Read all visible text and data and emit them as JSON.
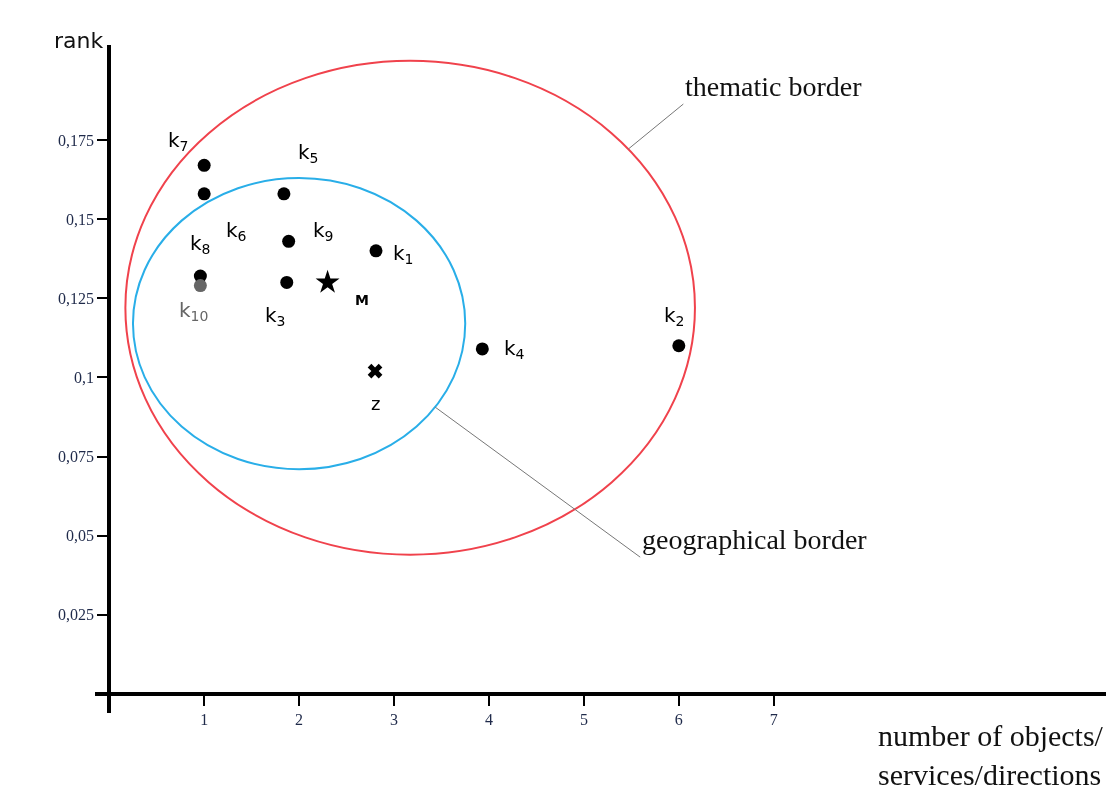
{
  "chart_data": {
    "type": "scatter",
    "xlabel": "number of objects/\nservices/directions",
    "ylabel": "rank",
    "xlim": [
      -0.15,
      10.5
    ],
    "ylim": [
      -0.006,
      0.205
    ],
    "xticks": [
      1,
      2,
      3,
      4,
      5,
      6,
      7
    ],
    "yticks": [
      {
        "value": 0.025,
        "label": "0,025"
      },
      {
        "value": 0.05,
        "label": "0,05"
      },
      {
        "value": 0.075,
        "label": "0,075"
      },
      {
        "value": 0.1,
        "label": "0,1"
      },
      {
        "value": 0.125,
        "label": "0,125"
      },
      {
        "value": 0.15,
        "label": "0,15"
      },
      {
        "value": 0.175,
        "label": "0,175"
      }
    ],
    "legend": false,
    "series": [
      {
        "name": "k$_{7}$",
        "color": "#000000",
        "marker": "circle",
        "x": [
          1.0
        ],
        "values": [
          0.167
        ]
      },
      {
        "name": "k$_{6}$",
        "color": "#000000",
        "marker": "circle",
        "x": [
          1.0
        ],
        "values": [
          0.158
        ]
      },
      {
        "name": "k$_{5}$",
        "color": "#000000",
        "marker": "circle",
        "x": [
          1.84
        ],
        "values": [
          0.158
        ]
      },
      {
        "name": "k$_{9}$",
        "color": "#000000",
        "marker": "circle",
        "x": [
          1.89
        ],
        "values": [
          0.143
        ]
      },
      {
        "name": "k$_{1}$",
        "color": "#000000",
        "marker": "circle",
        "x": [
          2.81
        ],
        "values": [
          0.14
        ]
      },
      {
        "name": "k$_{8}$",
        "color": "#000000",
        "marker": "circle",
        "x": [
          0.96
        ],
        "values": [
          0.132
        ]
      },
      {
        "name": "k$_{10}$",
        "color": "#666666",
        "marker": "circle",
        "x": [
          0.96
        ],
        "values": [
          0.129
        ]
      },
      {
        "name": "k$_{3}$",
        "color": "#000000",
        "marker": "circle",
        "x": [
          1.87
        ],
        "values": [
          0.13
        ]
      },
      {
        "name": "M",
        "color": "#000000",
        "marker": "star",
        "x": [
          2.3
        ],
        "values": [
          0.13
        ]
      },
      {
        "name": "z",
        "color": "#000000",
        "marker": "cross",
        "x": [
          2.8
        ],
        "values": [
          0.102
        ]
      },
      {
        "name": "k$_{2}$",
        "color": "#000000",
        "marker": "circle",
        "x": [
          6.0
        ],
        "values": [
          0.11
        ]
      },
      {
        "name": "k$_{4}$",
        "color": "#000000",
        "marker": "circle",
        "x": [
          3.93
        ],
        "values": [
          0.109
        ]
      }
    ],
    "annotations": [
      "thematic border",
      "geographical border"
    ]
  }
}
